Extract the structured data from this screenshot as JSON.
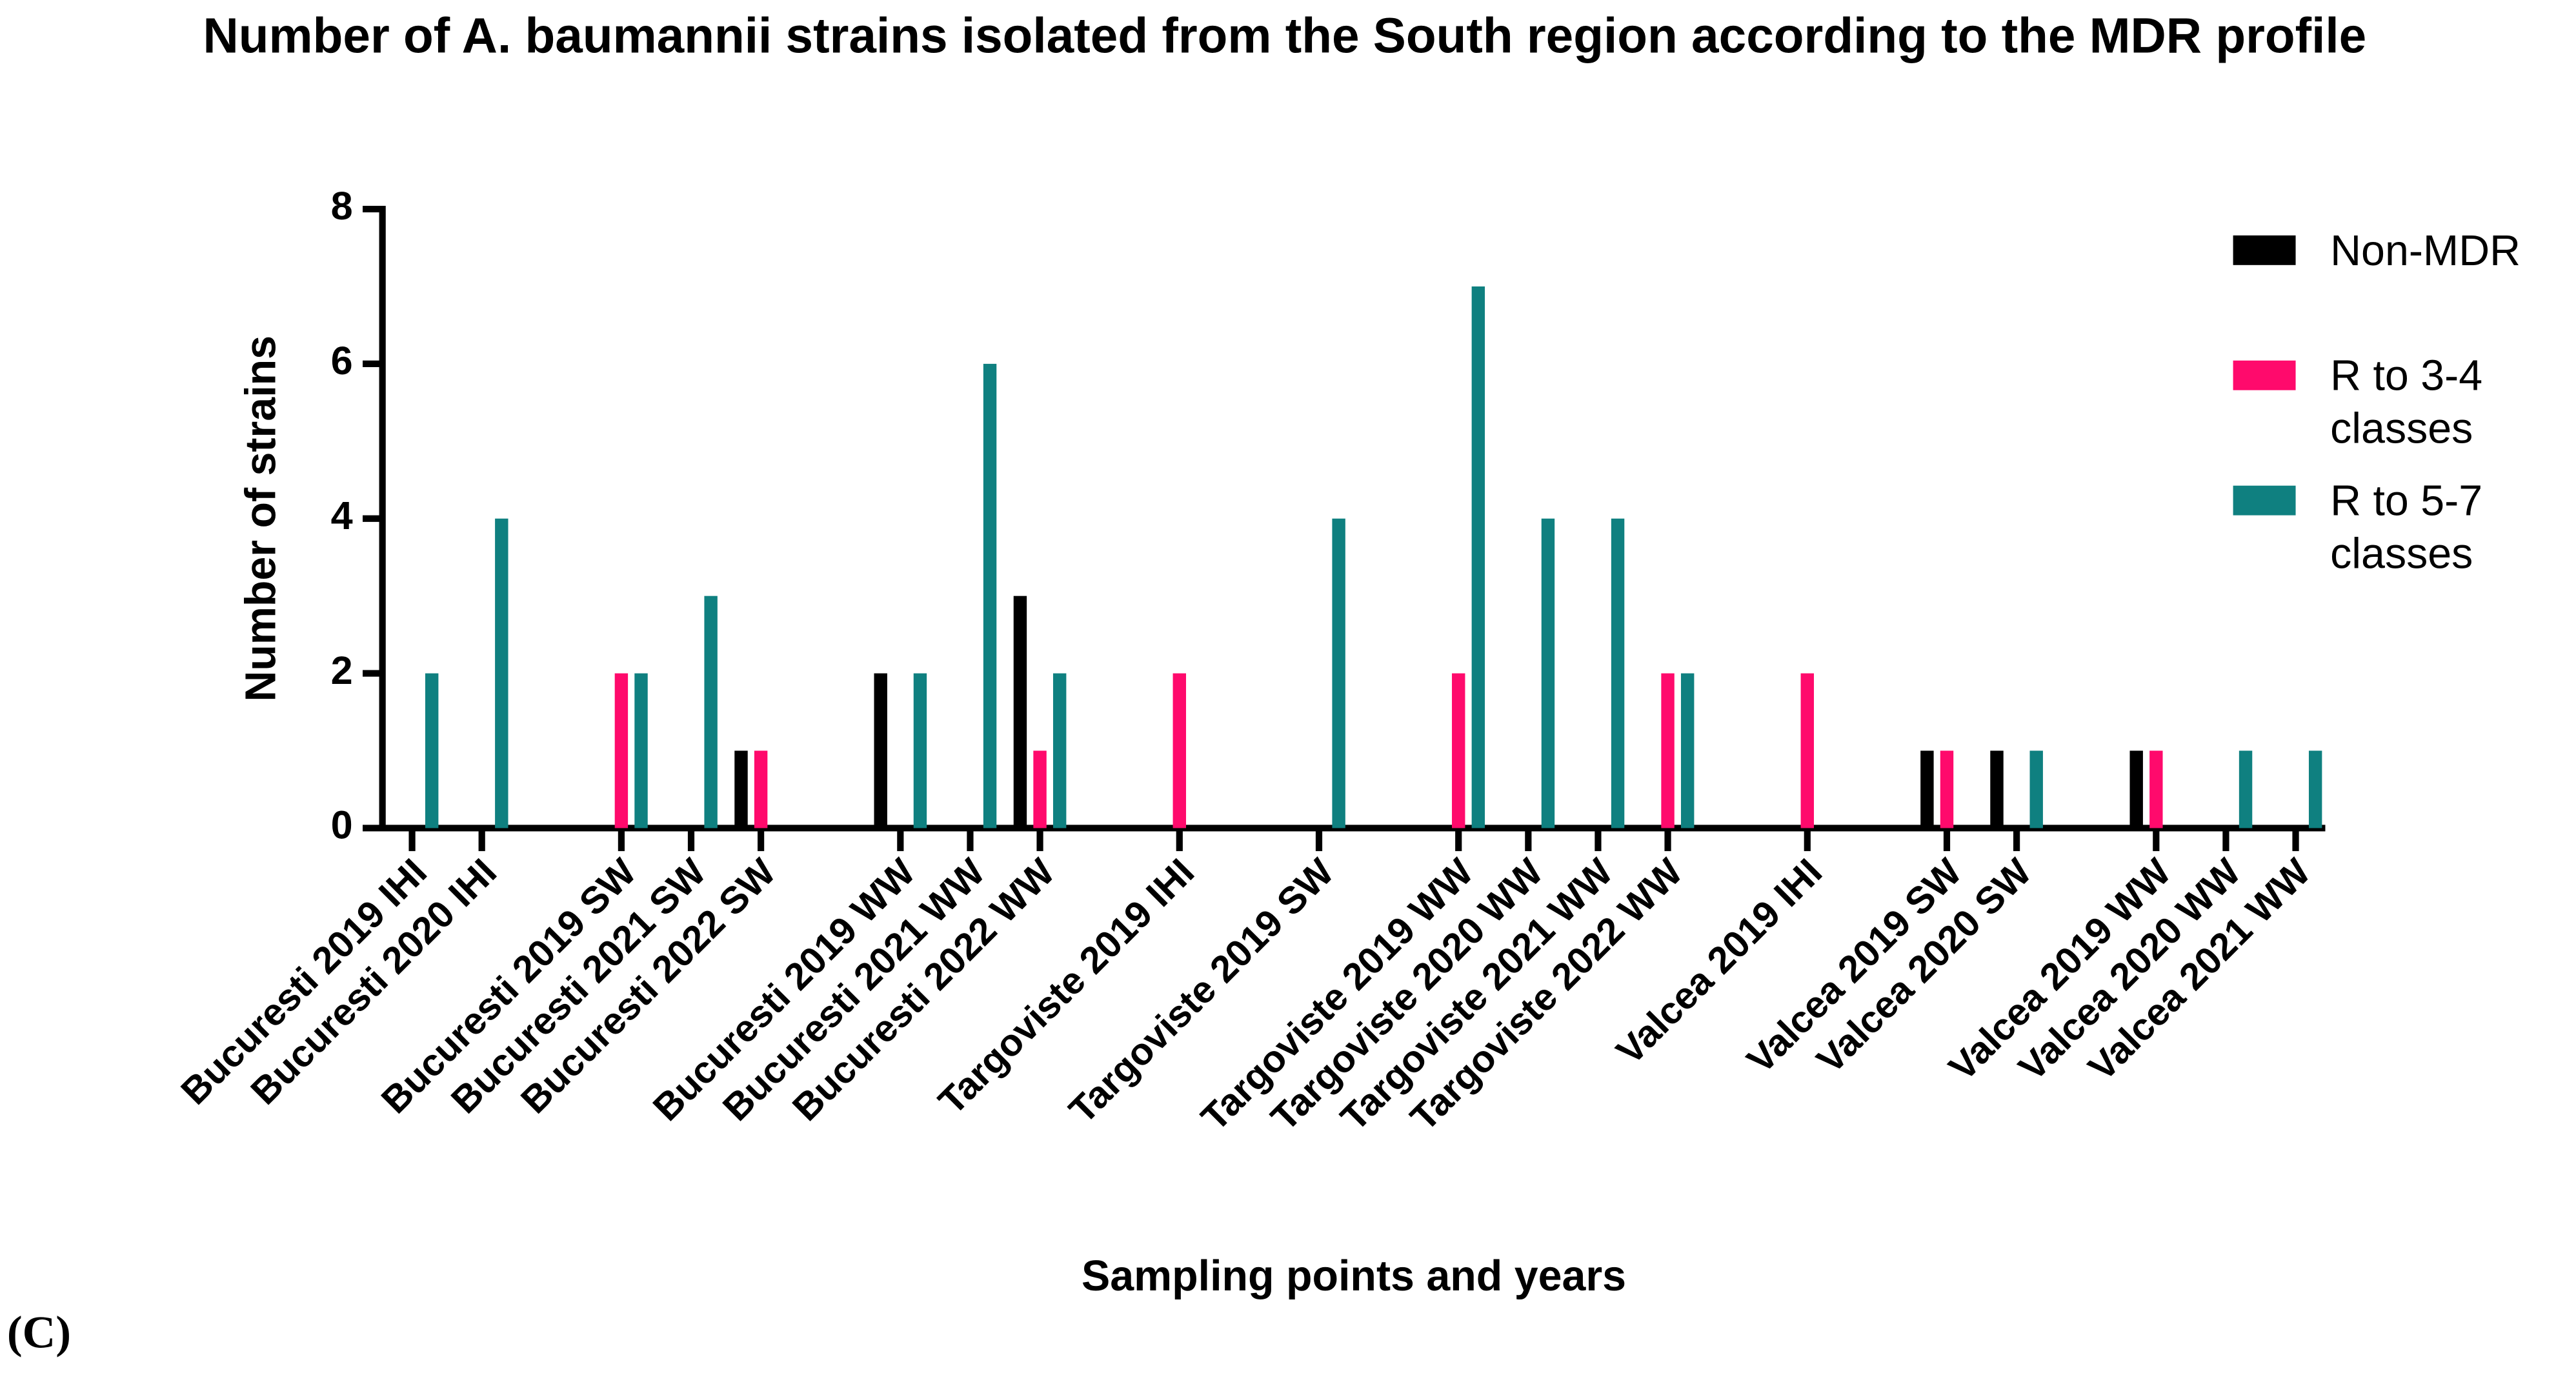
{
  "chart_data": {
    "type": "bar",
    "title": "Number of A. baumannii strains isolated from the South region according to the MDR profile",
    "x_label": "Sampling points and years",
    "y_label": "Number of strains",
    "panel_label": "(C)",
    "categories": [
      "Bucuresti 2019 IHI",
      "Bucuresti 2020 IHI",
      null,
      "Bucuresti 2019 SW",
      "Bucuresti 2021 SW",
      "Bucuresti 2022 SW",
      null,
      "Bucuresti 2019 WW",
      "Bucuresti 2021 WW",
      "Bucuresti 2022 WW",
      null,
      "Targoviste 2019 IHI",
      null,
      "Targoviste 2019 SW",
      null,
      "Targoviste 2019 WW",
      "Targoviste 2020 WW",
      "Targoviste 2021 WW",
      "Targoviste 2022 WW",
      null,
      "Valcea 2019 IHI",
      null,
      "Valcea 2019 SW",
      "Valcea 2020 SW",
      null,
      "Valcea 2019 WW",
      "Valcea 2020 WW",
      "Valcea 2021 WW"
    ],
    "series": [
      {
        "name": "Non-MDR",
        "color": "#000000",
        "values": [
          0,
          0,
          0,
          0,
          0,
          1,
          0,
          2,
          0,
          3,
          0,
          0,
          0,
          0,
          0,
          0,
          0,
          0,
          0,
          0,
          0,
          0,
          1,
          1,
          0,
          1,
          0,
          0
        ]
      },
      {
        "name": "R to 3-4 classes",
        "color": "#ff0a6c",
        "values": [
          0,
          0,
          0,
          2,
          0,
          1,
          0,
          0,
          0,
          1,
          0,
          2,
          0,
          0,
          0,
          2,
          0,
          0,
          2,
          0,
          2,
          0,
          1,
          0,
          0,
          1,
          0,
          0
        ]
      },
      {
        "name": "R to 5-7 classes",
        "color": "#0f8080",
        "values": [
          2,
          4,
          0,
          2,
          3,
          0,
          0,
          2,
          6,
          2,
          0,
          0,
          0,
          4,
          0,
          7,
          4,
          4,
          2,
          0,
          0,
          0,
          0,
          1,
          0,
          0,
          1,
          1
        ]
      }
    ],
    "ylim": [
      0,
      8
    ],
    "yticks": [
      0,
      2,
      4,
      6,
      8
    ],
    "legend": "top-right"
  }
}
